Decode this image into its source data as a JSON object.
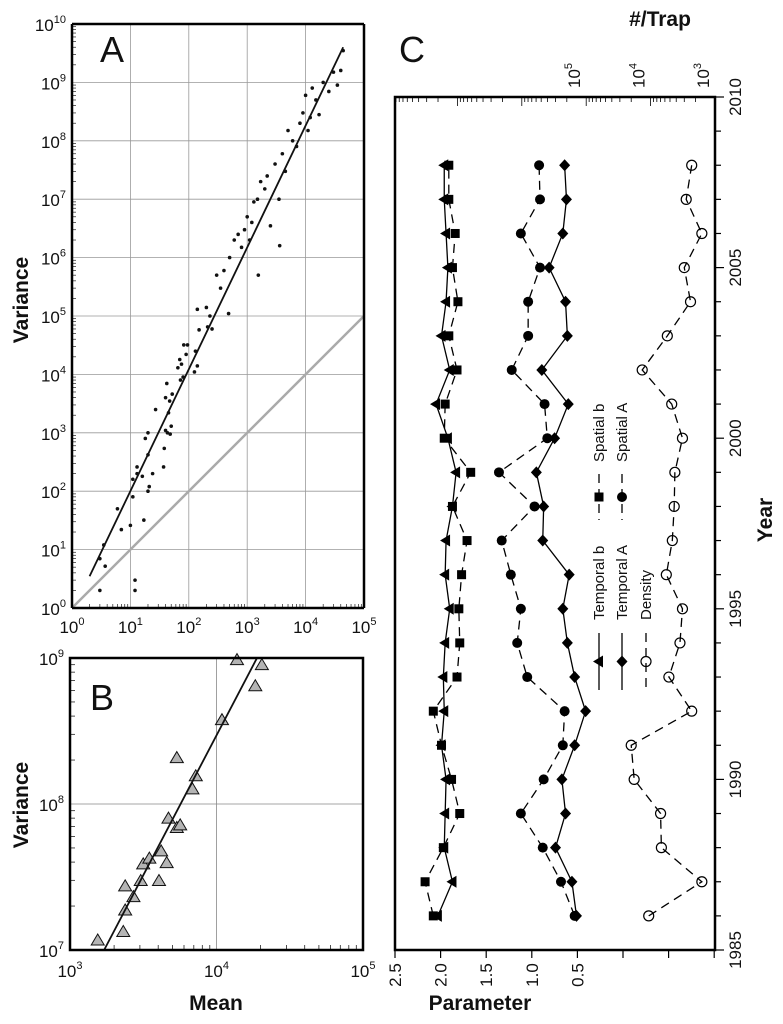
{
  "chart_data": [
    {
      "panel": "A",
      "type": "scatter",
      "xlabel": "",
      "ylabel": "Variance",
      "xscale": "log",
      "yscale": "log",
      "xlim": [
        1,
        100000
      ],
      "ylim": [
        1,
        10000000000
      ],
      "grid": true,
      "xticks": [
        {
          "base": "10",
          "exp": "0"
        },
        {
          "base": "10",
          "exp": "1"
        },
        {
          "base": "10",
          "exp": "2"
        },
        {
          "base": "10",
          "exp": "3"
        },
        {
          "base": "10",
          "exp": "4"
        },
        {
          "base": "10",
          "exp": "5"
        }
      ],
      "yticks": [
        {
          "base": "10",
          "exp": "0"
        },
        {
          "base": "10",
          "exp": "1"
        },
        {
          "base": "10",
          "exp": "2"
        },
        {
          "base": "10",
          "exp": "3"
        },
        {
          "base": "10",
          "exp": "4"
        },
        {
          "base": "10",
          "exp": "5"
        },
        {
          "base": "10",
          "exp": "6"
        },
        {
          "base": "10",
          "exp": "7"
        },
        {
          "base": "10",
          "exp": "8"
        },
        {
          "base": "10",
          "exp": "9"
        },
        {
          "base": "10",
          "exp": "10"
        }
      ],
      "points": [
        [
          3,
          7
        ],
        [
          3,
          2
        ],
        [
          3.5,
          12
        ],
        [
          3.7,
          5.2
        ],
        [
          6,
          50
        ],
        [
          7,
          22
        ],
        [
          10,
          26
        ],
        [
          11,
          80
        ],
        [
          11,
          160
        ],
        [
          12,
          3
        ],
        [
          12,
          2
        ],
        [
          13,
          260
        ],
        [
          13,
          200
        ],
        [
          16,
          180
        ],
        [
          17,
          32
        ],
        [
          18,
          800
        ],
        [
          20,
          420
        ],
        [
          20,
          1000
        ],
        [
          20,
          100
        ],
        [
          21,
          120
        ],
        [
          24,
          200
        ],
        [
          27,
          2500
        ],
        [
          37,
          260
        ],
        [
          38,
          540
        ],
        [
          40,
          1100
        ],
        [
          40,
          4000
        ],
        [
          42,
          7000
        ],
        [
          43,
          1000
        ],
        [
          45,
          2200
        ],
        [
          47,
          3500
        ],
        [
          48,
          950
        ],
        [
          50,
          1300
        ],
        [
          52,
          4600
        ],
        [
          65,
          13000
        ],
        [
          70,
          18000
        ],
        [
          72,
          8000
        ],
        [
          75,
          15000
        ],
        [
          80,
          9000
        ],
        [
          82,
          32000
        ],
        [
          90,
          22000
        ],
        [
          95,
          32000
        ],
        [
          125,
          11000
        ],
        [
          130,
          25000
        ],
        [
          140,
          130000
        ],
        [
          140,
          14000
        ],
        [
          150,
          58000
        ],
        [
          200,
          140000
        ],
        [
          210,
          65000
        ],
        [
          230,
          100000
        ],
        [
          250,
          60000
        ],
        [
          480,
          110000
        ],
        [
          300,
          500000
        ],
        [
          350,
          300000
        ],
        [
          400,
          600000
        ],
        [
          500,
          1000000
        ],
        [
          600,
          2000000
        ],
        [
          700,
          2500000
        ],
        [
          800,
          1500000
        ],
        [
          900,
          3000000
        ],
        [
          1000,
          5000000
        ],
        [
          1100,
          2000000
        ],
        [
          1200,
          4000000
        ],
        [
          1300,
          9000000
        ],
        [
          1500,
          10000000
        ],
        [
          1550,
          500000
        ],
        [
          1700,
          20000000
        ],
        [
          2000,
          15000000
        ],
        [
          2200,
          25000000
        ],
        [
          2500,
          3500000
        ],
        [
          3600,
          1600000
        ],
        [
          3000,
          40000000
        ],
        [
          3500,
          10000000
        ],
        [
          4000,
          60000000
        ],
        [
          4500,
          30000000
        ],
        [
          5000,
          150000000
        ],
        [
          6000,
          100000000
        ],
        [
          7000,
          80000000
        ],
        [
          8000,
          200000000
        ],
        [
          9000,
          300000000
        ],
        [
          10000,
          600000000
        ],
        [
          11000,
          150000000
        ],
        [
          12000,
          250000000
        ],
        [
          13000,
          800000000
        ],
        [
          15000,
          500000000
        ],
        [
          17000,
          280000000
        ],
        [
          20000,
          1000000000
        ],
        [
          25000,
          700000000
        ],
        [
          30000,
          1500000000
        ],
        [
          35000,
          900000000
        ],
        [
          40000,
          1600000000
        ],
        [
          44000,
          3500000000
        ]
      ],
      "fit_line": [
        [
          2,
          3.5
        ],
        [
          44000,
          4000000000
        ]
      ],
      "reference_line": [
        [
          1,
          1
        ],
        [
          100000,
          100000
        ]
      ],
      "colors": {
        "points": "#111111",
        "fit": "#111111",
        "reference": "#aaaaaa",
        "grid": "#999999"
      }
    },
    {
      "panel": "B",
      "type": "scatter",
      "xlabel": "Mean",
      "ylabel": "Variance",
      "xscale": "log",
      "yscale": "log",
      "xlim": [
        1000,
        100000
      ],
      "ylim": [
        10000000,
        1000000000
      ],
      "grid": true,
      "xticks": [
        {
          "base": "10",
          "exp": "3"
        },
        {
          "base": "10",
          "exp": "4"
        },
        {
          "base": "10",
          "exp": "5"
        }
      ],
      "yticks": [
        {
          "base": "10",
          "exp": "7"
        },
        {
          "base": "10",
          "exp": "8"
        },
        {
          "base": "10",
          "exp": "9"
        }
      ],
      "points": [
        [
          1546,
          11700000
        ],
        [
          2310,
          13400000
        ],
        [
          2380,
          18800000
        ],
        [
          2380,
          27500000
        ],
        [
          2710,
          23200000
        ],
        [
          3040,
          29900000
        ],
        [
          3160,
          38900000
        ],
        [
          3480,
          42600000
        ],
        [
          4050,
          29900000
        ],
        [
          4190,
          47700000
        ],
        [
          4570,
          39700000
        ],
        [
          4700,
          80000000
        ],
        [
          5360,
          69000000
        ],
        [
          5650,
          72000000
        ],
        [
          5360,
          208000000
        ],
        [
          6850,
          127000000
        ],
        [
          7220,
          156000000
        ],
        [
          10900,
          378000000
        ],
        [
          13800,
          975000000
        ],
        [
          18400,
          646000000
        ],
        [
          20400,
          900000000
        ]
      ],
      "fit_line": [
        [
          1710,
          10000000
        ],
        [
          18900,
          1000000000
        ]
      ],
      "colors": {
        "marker_fill": "#b4b4b4",
        "marker_stroke": "#111111",
        "fit": "#111111"
      }
    },
    {
      "panel": "C",
      "type": "line",
      "orientation": "rotated (years on vertical axis)",
      "year_label": "Year",
      "parameter_label": "Parameter",
      "density_label": "#/Trap",
      "year_lim": [
        1985,
        2010
      ],
      "parameter_lim": [
        2.5,
        -1.0
      ],
      "density_scale": "log",
      "density_lim": [
        1000,
        100000000
      ],
      "year_ticks": [
        "1985",
        "1990",
        "1995",
        "2000",
        "2005",
        "2010"
      ],
      "parameter_ticks": [
        "2.5",
        "2.0",
        "1.5",
        "1.0",
        "0.5"
      ],
      "density_ticks": [
        {
          "base": "10",
          "exp": "5"
        },
        {
          "base": "10",
          "exp": "4"
        },
        {
          "base": "10",
          "exp": "3"
        }
      ],
      "years": [
        1986,
        1987,
        1988,
        1989,
        1990,
        1991,
        1992,
        1993,
        1994,
        1995,
        1996,
        1997,
        1998,
        1999,
        2000,
        2001,
        2002,
        2003,
        2004,
        2005,
        2006,
        2007,
        2008
      ],
      "series": [
        {
          "name": "Temporal b",
          "axis": "parameter",
          "marker": "triangle",
          "line": "solid",
          "values": [
            2.03,
            1.87,
            1.96,
            1.95,
            1.94,
            1.99,
            1.96,
            1.97,
            1.95,
            1.9,
            1.95,
            1.94,
            1.87,
            1.83,
            1.92,
            2.05,
            1.9,
            1.99,
            1.94,
            1.92,
            1.94,
            1.96,
            1.96
          ]
        },
        {
          "name": "Spatial b",
          "axis": "parameter",
          "marker": "square",
          "line": "dashed",
          "values": [
            2.08,
            2.17,
            1.97,
            1.79,
            1.88,
            1.99,
            2.08,
            1.82,
            1.79,
            1.8,
            1.77,
            1.71,
            1.87,
            1.67,
            1.96,
            1.95,
            1.82,
            1.91,
            1.81,
            1.87,
            1.84,
            1.91,
            1.91
          ]
        },
        {
          "name": "Temporal A",
          "axis": "parameter",
          "marker": "diamond",
          "line": "solid",
          "values": [
            0.51,
            0.56,
            0.74,
            0.63,
            0.67,
            0.53,
            0.41,
            0.53,
            0.61,
            0.66,
            0.59,
            0.88,
            0.87,
            0.95,
            0.75,
            0.6,
            0.89,
            0.61,
            0.63,
            0.81,
            0.66,
            0.62,
            0.64
          ]
        },
        {
          "name": "Spatial A",
          "axis": "parameter",
          "marker": "circle",
          "line": "dashed",
          "values": [
            0.53,
            0.68,
            0.88,
            1.12,
            0.87,
            0.66,
            0.64,
            1.05,
            1.16,
            1.12,
            1.23,
            1.33,
            0.97,
            1.36,
            0.83,
            0.86,
            1.22,
            1.04,
            1.04,
            0.91,
            1.12,
            0.91,
            0.92
          ]
        },
        {
          "name": "Density",
          "axis": "density",
          "marker": "open-circle",
          "line": "dashed",
          "values": [
            10700,
            1600,
            6800,
            7000,
            18000,
            20000,
            2300,
            5200,
            3500,
            3200,
            5700,
            4600,
            4300,
            4200,
            3200,
            4700,
            13500,
            5500,
            2400,
            3000,
            1600,
            2800,
            2300
          ]
        }
      ]
    }
  ],
  "labels": {
    "panel_a": "A",
    "panel_b": "B",
    "panel_c": "C"
  }
}
